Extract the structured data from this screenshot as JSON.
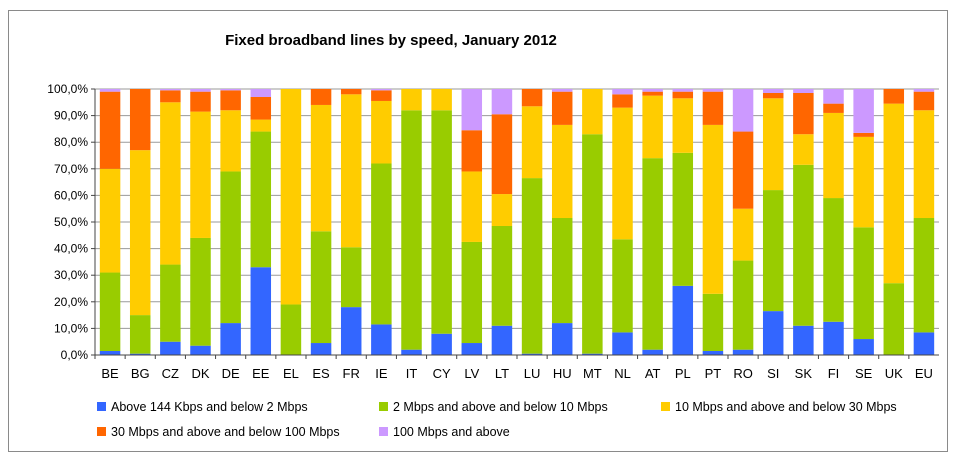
{
  "chart_data": {
    "type": "bar",
    "stacked": true,
    "title": "Fixed broadband lines by speed, January 2012",
    "xlabel": "",
    "ylabel": "",
    "ylim": [
      0,
      100
    ],
    "y_ticks": [
      "0,0%",
      "10,0%",
      "20,0%",
      "30,0%",
      "40,0%",
      "50,0%",
      "60,0%",
      "70,0%",
      "80,0%",
      "90,0%",
      "100,0%"
    ],
    "grid": true,
    "legend_position": "bottom",
    "categories": [
      "BE",
      "BG",
      "CZ",
      "DK",
      "DE",
      "EE",
      "EL",
      "ES",
      "FR",
      "IE",
      "IT",
      "CY",
      "LV",
      "LT",
      "LU",
      "HU",
      "MT",
      "NL",
      "AT",
      "PL",
      "PT",
      "RO",
      "SI",
      "SK",
      "FI",
      "SE",
      "UK",
      "EU"
    ],
    "series": [
      {
        "name": "Above 144 Kbps and below 2 Mbps",
        "color": "#3366ff",
        "values": [
          1.5,
          0.5,
          5,
          3.5,
          12,
          33,
          0,
          4.5,
          18,
          11.5,
          2,
          8,
          4.5,
          11,
          0.5,
          12,
          0.5,
          8.5,
          2,
          26,
          1.5,
          2,
          16.5,
          11,
          12.5,
          6,
          0,
          8.5
        ]
      },
      {
        "name": "2 Mbps and above and below 10 Mbps",
        "color": "#99cc00",
        "values": [
          29.5,
          14.5,
          29,
          40.5,
          57,
          51,
          19,
          42,
          22.5,
          60.5,
          90,
          84,
          38,
          37.5,
          66,
          39.5,
          82.5,
          35,
          72,
          50,
          21.5,
          33.5,
          45.5,
          60.5,
          46.5,
          42,
          27,
          43
        ]
      },
      {
        "name": "10 Mbps and above and below 30 Mbps",
        "color": "#ffcc00",
        "values": [
          39,
          62,
          61,
          47.5,
          23,
          4.5,
          81,
          47.5,
          57.5,
          23.5,
          8,
          8,
          26.5,
          12,
          27,
          35,
          17,
          49.5,
          23.5,
          20.5,
          63.5,
          19.5,
          34.5,
          11.5,
          32,
          34,
          67.5,
          40.5
        ]
      },
      {
        "name": "30 Mbps and above and below 100 Mbps",
        "color": "#ff6600",
        "values": [
          29,
          23,
          4.5,
          7.5,
          7.5,
          8.5,
          0,
          6,
          2,
          4,
          0,
          0,
          15.5,
          30,
          6.5,
          12.5,
          0,
          5,
          1.5,
          2.5,
          12.5,
          29,
          2,
          15.5,
          3.5,
          1.5,
          5.5,
          7
        ]
      },
      {
        "name": "100 Mbps and above",
        "color": "#cc99ff",
        "values": [
          1,
          0,
          0.5,
          1,
          0.5,
          3,
          0,
          0,
          0,
          0.5,
          0,
          0,
          15.5,
          9.5,
          0,
          1,
          0,
          2,
          1,
          1,
          1,
          16,
          1.5,
          1.5,
          5.5,
          16.5,
          0,
          1
        ]
      }
    ]
  }
}
